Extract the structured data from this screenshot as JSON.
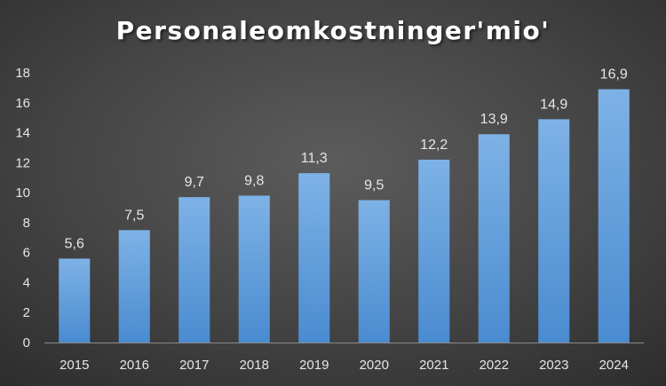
{
  "chart_data": {
    "type": "bar",
    "title": "Personaleomkostninger'mio'",
    "categories": [
      "2015",
      "2016",
      "2017",
      "2018",
      "2019",
      "2020",
      "2021",
      "2022",
      "2023",
      "2024"
    ],
    "values": [
      5.6,
      7.5,
      9.7,
      9.8,
      11.3,
      9.5,
      12.2,
      13.9,
      14.9,
      16.9
    ],
    "data_labels": [
      "5,6",
      "7,5",
      "9,7",
      "9,8",
      "11,3",
      "9,5",
      "12,2",
      "13,9",
      "14,9",
      "16,9"
    ],
    "ylim": [
      0,
      18
    ],
    "yticks": [
      0,
      2,
      4,
      6,
      8,
      10,
      12,
      14,
      16,
      18
    ],
    "grid": false,
    "legend": "none",
    "colors": {
      "bar_top": "#7eb2e6",
      "bar_bottom": "#4a8bd0",
      "axis": "#8a8a8a",
      "text": "#e6e6e6",
      "title": "#ffffff"
    }
  }
}
